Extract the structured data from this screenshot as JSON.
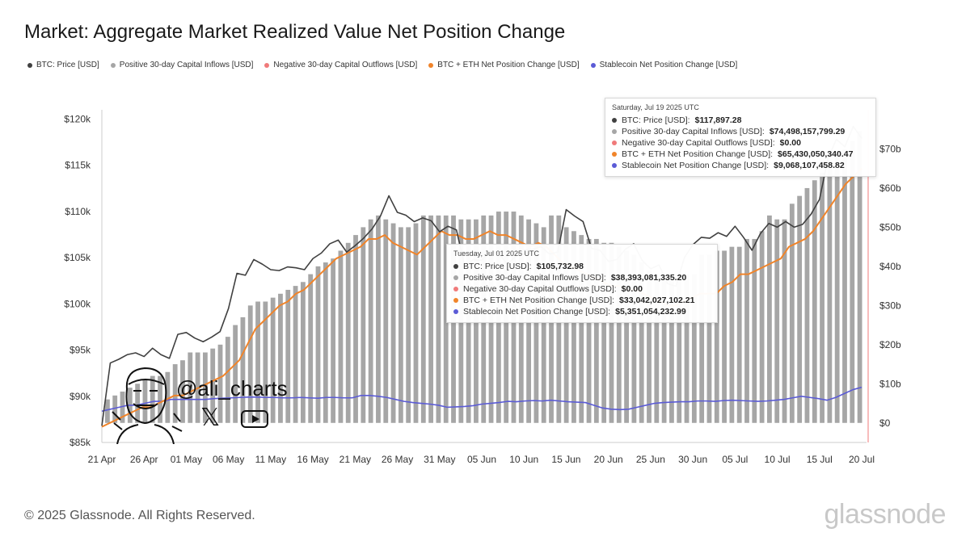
{
  "title": "Market: Aggregate Market Realized Value Net Position Change",
  "legend": [
    {
      "label": "BTC: Price [USD]",
      "color": "#404040"
    },
    {
      "label": "Positive 30-day Capital Inflows [USD]",
      "color": "#a6a6a6"
    },
    {
      "label": "Negative 30-day Capital Outflows [USD]",
      "color": "#f07a7a"
    },
    {
      "label": "BTC + ETH Net Position Change [USD]",
      "color": "#f0842a"
    },
    {
      "label": "Stablecoin Net Position Change [USD]",
      "color": "#5b5bd6"
    }
  ],
  "tooltip1": {
    "date": "Saturday, Jul 19 2025 UTC",
    "rows": [
      {
        "label": "BTC: Price [USD]:",
        "value": "$117,897.28",
        "color": "#404040"
      },
      {
        "label": "Positive 30-day Capital Inflows [USD]:",
        "value": "$74,498,157,799.29",
        "color": "#a6a6a6"
      },
      {
        "label": "Negative 30-day Capital Outflows [USD]:",
        "value": "$0.00",
        "color": "#f07a7a"
      },
      {
        "label": "BTC + ETH Net Position Change [USD]:",
        "value": "$65,430,050,340.47",
        "color": "#f0842a"
      },
      {
        "label": "Stablecoin Net Position Change [USD]:",
        "value": "$9,068,107,458.82",
        "color": "#5b5bd6"
      }
    ]
  },
  "tooltip2": {
    "date": "Tuesday, Jul 01 2025 UTC",
    "rows": [
      {
        "label": "BTC: Price [USD]:",
        "value": "$105,732.98",
        "color": "#404040"
      },
      {
        "label": "Positive 30-day Capital Inflows [USD]:",
        "value": "$38,393,081,335.20",
        "color": "#a6a6a6"
      },
      {
        "label": "Negative 30-day Capital Outflows [USD]:",
        "value": "$0.00",
        "color": "#f07a7a"
      },
      {
        "label": "BTC + ETH Net Position Change [USD]:",
        "value": "$33,042,027,102.21",
        "color": "#f0842a"
      },
      {
        "label": "Stablecoin Net Position Change [USD]:",
        "value": "$5,351,054,232.99",
        "color": "#5b5bd6"
      }
    ]
  },
  "watermark": {
    "handle": "@ali_charts",
    "x_glyph": "𝕏"
  },
  "footer": "© 2025 Glassnode. All Rights Reserved.",
  "brand": "glassnode",
  "chart_data": {
    "type": "bar",
    "x_axis": {
      "ticks": [
        "21 Apr",
        "26 Apr",
        "01 May",
        "06 May",
        "11 May",
        "16 May",
        "21 May",
        "26 May",
        "31 May",
        "05 Jun",
        "10 Jun",
        "15 Jun",
        "20 Jun",
        "25 Jun",
        "30 Jun",
        "05 Jul",
        "10 Jul",
        "15 Jul",
        "20 Jul"
      ],
      "start": "2025-04-21",
      "end": "2025-07-20"
    },
    "y_left": {
      "ticks": [
        "$85k",
        "$90k",
        "$95k",
        "$100k",
        "$105k",
        "$110k",
        "$115k",
        "$120k"
      ],
      "range": [
        85000,
        121000
      ]
    },
    "y_right": {
      "ticks": [
        "$0",
        "$10b",
        "$20b",
        "$30b",
        "$40b",
        "$50b",
        "$60b",
        "$70b"
      ],
      "range": [
        -5,
        80
      ],
      "unit": "billion USD"
    },
    "series": [
      {
        "name": "BTC: Price [USD]",
        "color": "#404040",
        "axis": "left",
        "values": [
          86800,
          93600,
          94000,
          94500,
          94700,
          94300,
          95200,
          94500,
          94100,
          96700,
          96900,
          96300,
          95900,
          96400,
          97000,
          99500,
          103300,
          103100,
          104800,
          104300,
          103700,
          103600,
          104000,
          103900,
          103700,
          104900,
          105500,
          106500,
          106900,
          105600,
          106300,
          107100,
          108100,
          109500,
          111700,
          109900,
          109600,
          108900,
          109300,
          109000,
          107800,
          108400,
          108000,
          104000,
          104800,
          104700,
          105700,
          105500,
          104300,
          105100,
          105800,
          105900,
          106200,
          105400,
          105600,
          110200,
          109500,
          108900,
          106000,
          105800,
          104600,
          104800,
          105900,
          106500,
          104700,
          103800,
          104200,
          102200,
          101900,
          105000,
          106400,
          107200,
          107100,
          107700,
          107300,
          108400,
          107200,
          105800,
          107600,
          108700,
          108300,
          108900,
          108300,
          108600,
          109700,
          111300,
          115700,
          117800,
          117000,
          119200,
          117900
        ]
      },
      {
        "name": "Positive 30-day Capital Inflows [USD]",
        "color": "#a6a6a6",
        "axis": "right",
        "values": [
          6,
          7,
          8,
          9,
          10,
          11,
          12,
          12,
          13,
          15,
          16,
          18,
          18,
          18,
          19,
          20,
          22,
          25,
          27,
          30,
          31,
          31,
          32,
          33,
          34,
          35,
          36,
          38,
          40,
          41,
          42,
          44,
          46,
          48,
          50,
          52,
          53,
          52,
          51,
          50,
          50,
          51,
          53,
          53,
          53,
          53,
          53,
          52,
          52,
          52,
          53,
          53,
          54,
          54,
          54,
          53,
          52,
          51,
          50,
          53,
          53,
          50,
          49,
          48,
          47,
          47,
          46,
          46,
          45,
          44,
          43,
          41,
          39,
          38,
          37,
          37,
          37,
          38,
          38,
          43,
          43,
          44,
          44,
          45,
          45,
          47,
          47,
          49,
          53,
          52,
          52,
          56,
          58,
          60,
          62,
          64,
          66,
          68,
          70,
          72,
          74.5
        ]
      },
      {
        "name": "BTC + ETH Net Position Change [USD]",
        "color": "#f0842a",
        "axis": "right",
        "values": [
          -1,
          0,
          1,
          2,
          3,
          4,
          4,
          5,
          6,
          7,
          7,
          8,
          9,
          10,
          11,
          12,
          14,
          16,
          20,
          24,
          26,
          28,
          30,
          31,
          33,
          34,
          36,
          38,
          40,
          42,
          43,
          44,
          45,
          47,
          47,
          48,
          46,
          45,
          44,
          43,
          45,
          47,
          49,
          48,
          48,
          47,
          47,
          48,
          49,
          48,
          48,
          47,
          46,
          45,
          46,
          45,
          43,
          41,
          40,
          39,
          38,
          37,
          36,
          35,
          35,
          34,
          34,
          33,
          32,
          31,
          30,
          30,
          31,
          32,
          33,
          33,
          33,
          35,
          36,
          38,
          38,
          39,
          40,
          41,
          42,
          45,
          46,
          47,
          49,
          52,
          55,
          58,
          61,
          63,
          65
        ]
      },
      {
        "name": "Stablecoin Net Position Change [USD]",
        "color": "#5b5bd6",
        "axis": "right",
        "values": [
          3,
          3.5,
          4,
          4.5,
          4.5,
          5,
          5.5,
          5.5,
          6,
          6,
          6,
          6,
          6,
          6.2,
          6.3,
          6.4,
          6.5,
          6.6,
          6.6,
          6.5,
          6.5,
          6.4,
          6.4,
          6.5,
          6.4,
          6.3,
          6.5,
          6.5,
          6.4,
          6.4,
          7,
          7,
          6.8,
          6.5,
          6,
          5.5,
          5.2,
          5,
          4.8,
          4.5,
          4,
          4.1,
          4.2,
          4.4,
          4.8,
          5,
          5.2,
          5.5,
          5.4,
          5.6,
          5.7,
          5.6,
          5.8,
          5.6,
          5.4,
          5.3,
          5.2,
          4.5,
          3.8,
          3.5,
          3.4,
          3.5,
          4,
          4.5,
          5,
          5.2,
          5.3,
          5.4,
          5.4,
          5.6,
          5.6,
          5.5,
          5.7,
          5.8,
          5.7,
          5.6,
          5.5,
          5.6,
          5.8,
          6,
          6.4,
          6.8,
          6.5,
          6.2,
          5.8,
          6.5,
          7.5,
          8.5,
          9.1
        ]
      }
    ],
    "grid": false,
    "legend_position": "top-left"
  }
}
